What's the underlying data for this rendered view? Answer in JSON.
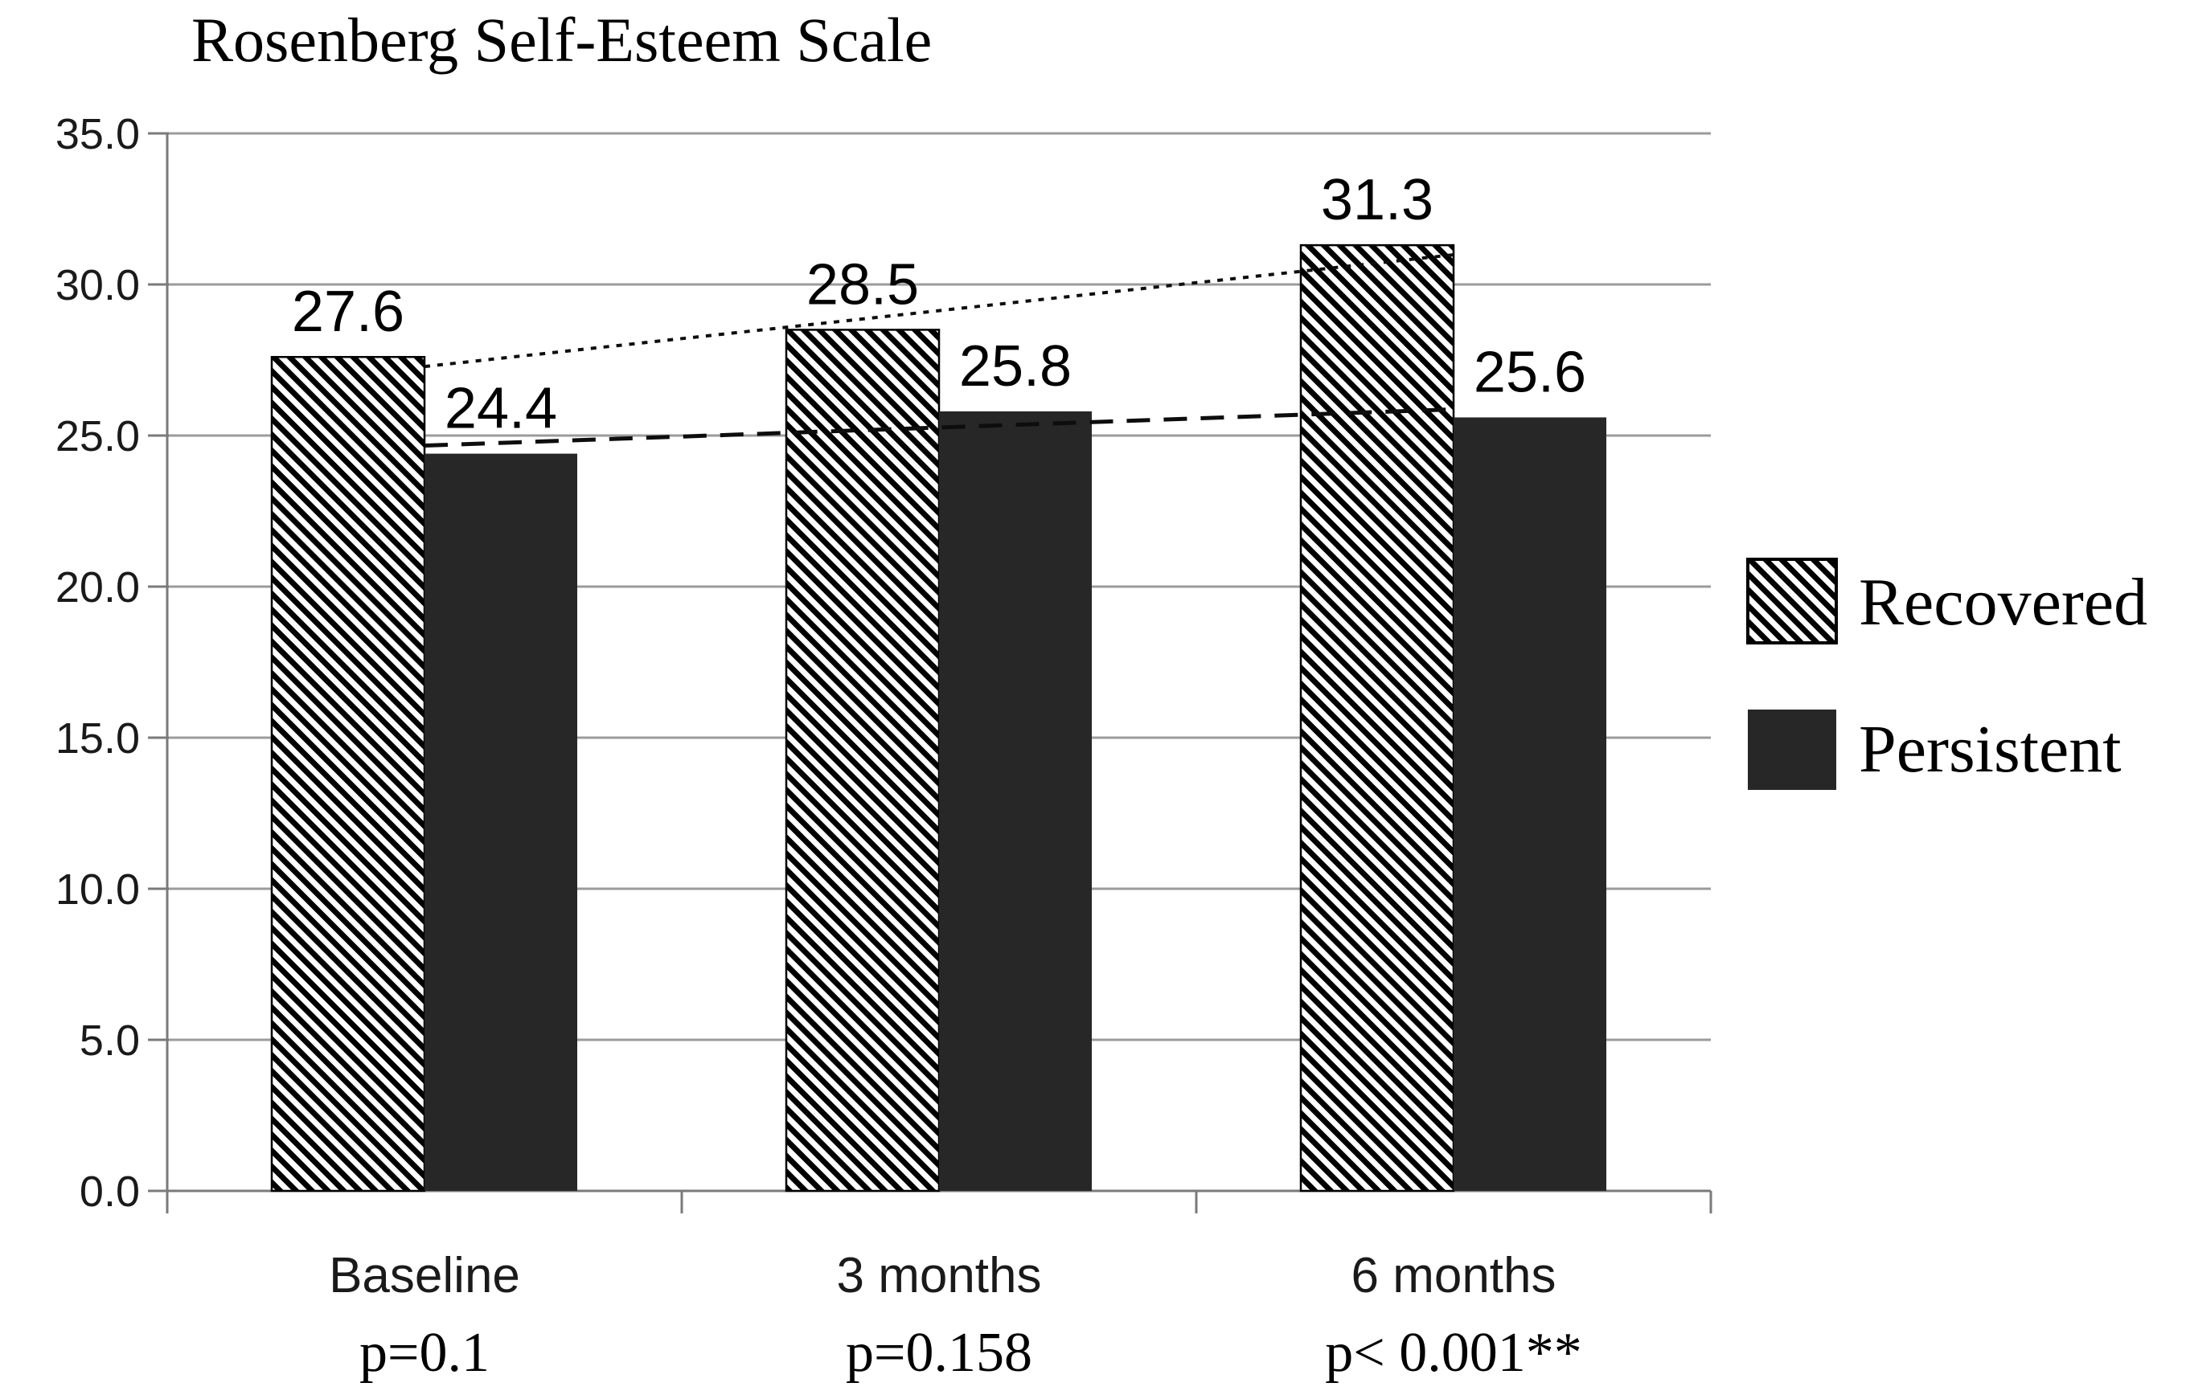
{
  "chart_data": {
    "type": "bar",
    "title": "Rosenberg Self-Esteem Scale",
    "categories": [
      {
        "label": "Baseline",
        "p_label": "p=0.1"
      },
      {
        "label": "3 months",
        "p_label": "p=0.158"
      },
      {
        "label": "6 months",
        "p_label": "p< 0.001**"
      }
    ],
    "series": [
      {
        "name": "Recovered",
        "values": [
          27.6,
          28.5,
          31.3
        ],
        "fill_style": "diagonal-hatch",
        "trendline_style": "dotted"
      },
      {
        "name": "Persistent",
        "values": [
          24.4,
          25.8,
          25.6
        ],
        "fill_style": "solid",
        "trendline_style": "dashed"
      }
    ],
    "value_label_decimals": 1,
    "ylim": [
      0,
      35
    ],
    "yticks": [
      {
        "v": 0,
        "label": "0.0"
      },
      {
        "v": 5,
        "label": "5.0"
      },
      {
        "v": 10,
        "label": "10.0"
      },
      {
        "v": 15,
        "label": "15.0"
      },
      {
        "v": 20,
        "label": "20.0"
      },
      {
        "v": 25,
        "label": "25.0"
      },
      {
        "v": 30,
        "label": "30.0"
      },
      {
        "v": 35,
        "label": "35.0"
      }
    ],
    "grid": true,
    "legend_position": "right",
    "colors": {
      "bar_solid": "#272727",
      "hatch_foreground": "#000000",
      "hatch_background": "#ffffff",
      "gridline": "#9b9b9b",
      "axis": "#7a7a7a",
      "trendline": "#0d0d0d",
      "text": "#000000"
    }
  }
}
